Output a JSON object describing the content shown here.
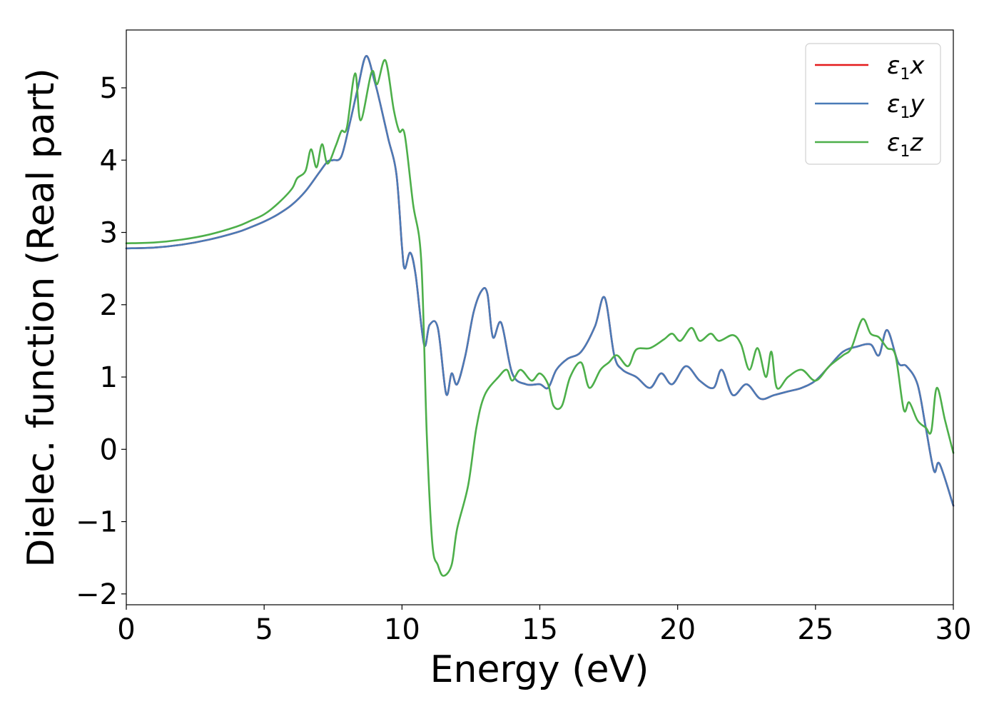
{
  "chart_data": {
    "type": "line",
    "xlabel": "Energy (eV)",
    "ylabel": "Dielec. function (Real part)",
    "xlim": [
      0,
      30
    ],
    "ylim": [
      -2.15,
      5.8
    ],
    "xticks": [
      0,
      5,
      10,
      15,
      20,
      25,
      30
    ],
    "xtick_labels": [
      "0",
      "5",
      "10",
      "15",
      "20",
      "25",
      "30"
    ],
    "yticks": [
      -2,
      -1,
      0,
      1,
      2,
      3,
      4,
      5
    ],
    "ytick_labels": [
      "−2",
      "−1",
      "0",
      "1",
      "2",
      "3",
      "4",
      "5"
    ],
    "grid": false,
    "legend_position": "top-right",
    "series": [
      {
        "name": "ε₁x",
        "name_parts": {
          "symbol": "ε",
          "sub": "1",
          "axis": "x"
        },
        "color": "#e41a1c",
        "points": [
          [
            0,
            2.78
          ],
          [
            1,
            2.79
          ],
          [
            2,
            2.83
          ],
          [
            3,
            2.9
          ],
          [
            4,
            3.0
          ],
          [
            4.5,
            3.07
          ],
          [
            5,
            3.15
          ],
          [
            5.5,
            3.25
          ],
          [
            6,
            3.38
          ],
          [
            6.5,
            3.57
          ],
          [
            7,
            3.83
          ],
          [
            7.3,
            3.98
          ],
          [
            7.5,
            4.0
          ],
          [
            7.8,
            4.05
          ],
          [
            8.1,
            4.5
          ],
          [
            8.4,
            5.0
          ],
          [
            8.7,
            5.44
          ],
          [
            9.0,
            5.1
          ],
          [
            9.2,
            4.8
          ],
          [
            9.5,
            4.3
          ],
          [
            9.8,
            3.8
          ],
          [
            10.0,
            2.8
          ],
          [
            10.1,
            2.5
          ],
          [
            10.3,
            2.72
          ],
          [
            10.5,
            2.4
          ],
          [
            10.8,
            1.45
          ],
          [
            11.0,
            1.72
          ],
          [
            11.3,
            1.68
          ],
          [
            11.6,
            0.77
          ],
          [
            11.8,
            1.05
          ],
          [
            12.0,
            0.9
          ],
          [
            12.3,
            1.3
          ],
          [
            12.6,
            1.9
          ],
          [
            12.9,
            2.2
          ],
          [
            13.1,
            2.15
          ],
          [
            13.3,
            1.55
          ],
          [
            13.6,
            1.75
          ],
          [
            14.0,
            1.05
          ],
          [
            14.5,
            0.9
          ],
          [
            15.0,
            0.9
          ],
          [
            15.3,
            0.85
          ],
          [
            15.6,
            1.1
          ],
          [
            16.0,
            1.25
          ],
          [
            16.5,
            1.35
          ],
          [
            17.0,
            1.7
          ],
          [
            17.35,
            2.1
          ],
          [
            17.7,
            1.3
          ],
          [
            18.0,
            1.1
          ],
          [
            18.5,
            1.0
          ],
          [
            19.0,
            0.85
          ],
          [
            19.4,
            1.05
          ],
          [
            19.8,
            0.9
          ],
          [
            20.3,
            1.15
          ],
          [
            20.8,
            0.95
          ],
          [
            21.3,
            0.85
          ],
          [
            21.6,
            1.1
          ],
          [
            22.0,
            0.75
          ],
          [
            22.5,
            0.9
          ],
          [
            23.0,
            0.7
          ],
          [
            23.5,
            0.75
          ],
          [
            24.0,
            0.8
          ],
          [
            24.5,
            0.85
          ],
          [
            25.0,
            0.95
          ],
          [
            25.5,
            1.15
          ],
          [
            26.0,
            1.35
          ],
          [
            26.5,
            1.42
          ],
          [
            27.0,
            1.45
          ],
          [
            27.3,
            1.3
          ],
          [
            27.6,
            1.65
          ],
          [
            28.0,
            1.2
          ],
          [
            28.3,
            1.15
          ],
          [
            28.7,
            0.9
          ],
          [
            29.0,
            0.3
          ],
          [
            29.3,
            -0.3
          ],
          [
            29.5,
            -0.2
          ],
          [
            30.0,
            -0.78
          ]
        ]
      },
      {
        "name": "ε₁y",
        "name_parts": {
          "symbol": "ε",
          "sub": "1",
          "axis": "y"
        },
        "color": "#4a7bb7",
        "points": [
          [
            0,
            2.78
          ],
          [
            1,
            2.79
          ],
          [
            2,
            2.83
          ],
          [
            3,
            2.9
          ],
          [
            4,
            3.0
          ],
          [
            4.5,
            3.07
          ],
          [
            5,
            3.15
          ],
          [
            5.5,
            3.25
          ],
          [
            6,
            3.38
          ],
          [
            6.5,
            3.57
          ],
          [
            7,
            3.83
          ],
          [
            7.3,
            3.98
          ],
          [
            7.5,
            4.0
          ],
          [
            7.8,
            4.05
          ],
          [
            8.1,
            4.5
          ],
          [
            8.4,
            5.0
          ],
          [
            8.7,
            5.44
          ],
          [
            9.0,
            5.1
          ],
          [
            9.2,
            4.8
          ],
          [
            9.5,
            4.3
          ],
          [
            9.8,
            3.8
          ],
          [
            10.0,
            2.8
          ],
          [
            10.1,
            2.5
          ],
          [
            10.3,
            2.72
          ],
          [
            10.5,
            2.4
          ],
          [
            10.8,
            1.45
          ],
          [
            11.0,
            1.72
          ],
          [
            11.3,
            1.68
          ],
          [
            11.6,
            0.77
          ],
          [
            11.8,
            1.05
          ],
          [
            12.0,
            0.9
          ],
          [
            12.3,
            1.3
          ],
          [
            12.6,
            1.9
          ],
          [
            12.9,
            2.2
          ],
          [
            13.1,
            2.15
          ],
          [
            13.3,
            1.55
          ],
          [
            13.6,
            1.75
          ],
          [
            14.0,
            1.05
          ],
          [
            14.5,
            0.9
          ],
          [
            15.0,
            0.9
          ],
          [
            15.3,
            0.85
          ],
          [
            15.6,
            1.1
          ],
          [
            16.0,
            1.25
          ],
          [
            16.5,
            1.35
          ],
          [
            17.0,
            1.7
          ],
          [
            17.35,
            2.1
          ],
          [
            17.7,
            1.3
          ],
          [
            18.0,
            1.1
          ],
          [
            18.5,
            1.0
          ],
          [
            19.0,
            0.85
          ],
          [
            19.4,
            1.05
          ],
          [
            19.8,
            0.9
          ],
          [
            20.3,
            1.15
          ],
          [
            20.8,
            0.95
          ],
          [
            21.3,
            0.85
          ],
          [
            21.6,
            1.1
          ],
          [
            22.0,
            0.75
          ],
          [
            22.5,
            0.9
          ],
          [
            23.0,
            0.7
          ],
          [
            23.5,
            0.75
          ],
          [
            24.0,
            0.8
          ],
          [
            24.5,
            0.85
          ],
          [
            25.0,
            0.95
          ],
          [
            25.5,
            1.15
          ],
          [
            26.0,
            1.35
          ],
          [
            26.5,
            1.42
          ],
          [
            27.0,
            1.45
          ],
          [
            27.3,
            1.3
          ],
          [
            27.6,
            1.65
          ],
          [
            28.0,
            1.2
          ],
          [
            28.3,
            1.15
          ],
          [
            28.7,
            0.9
          ],
          [
            29.0,
            0.3
          ],
          [
            29.3,
            -0.3
          ],
          [
            29.5,
            -0.2
          ],
          [
            30.0,
            -0.78
          ]
        ]
      },
      {
        "name": "ε₁z",
        "name_parts": {
          "symbol": "ε",
          "sub": "1",
          "axis": "z"
        },
        "color": "#4daf4a",
        "points": [
          [
            0,
            2.85
          ],
          [
            1,
            2.86
          ],
          [
            2,
            2.9
          ],
          [
            3,
            2.97
          ],
          [
            4,
            3.08
          ],
          [
            4.5,
            3.16
          ],
          [
            5,
            3.25
          ],
          [
            5.5,
            3.4
          ],
          [
            6,
            3.6
          ],
          [
            6.2,
            3.75
          ],
          [
            6.5,
            3.85
          ],
          [
            6.7,
            4.15
          ],
          [
            6.9,
            3.9
          ],
          [
            7.1,
            4.22
          ],
          [
            7.3,
            3.95
          ],
          [
            7.6,
            4.2
          ],
          [
            7.8,
            4.4
          ],
          [
            8.0,
            4.45
          ],
          [
            8.3,
            5.2
          ],
          [
            8.5,
            4.55
          ],
          [
            8.9,
            5.22
          ],
          [
            9.1,
            5.05
          ],
          [
            9.4,
            5.38
          ],
          [
            9.7,
            4.7
          ],
          [
            9.9,
            4.4
          ],
          [
            10.1,
            4.35
          ],
          [
            10.4,
            3.4
          ],
          [
            10.7,
            2.6
          ],
          [
            10.9,
            0.2
          ],
          [
            11.1,
            -1.3
          ],
          [
            11.3,
            -1.6
          ],
          [
            11.5,
            -1.75
          ],
          [
            11.8,
            -1.6
          ],
          [
            12.0,
            -1.1
          ],
          [
            12.4,
            -0.5
          ],
          [
            12.7,
            0.3
          ],
          [
            13.0,
            0.75
          ],
          [
            13.5,
            1.0
          ],
          [
            13.8,
            1.1
          ],
          [
            14.0,
            0.95
          ],
          [
            14.3,
            1.1
          ],
          [
            14.7,
            0.95
          ],
          [
            15.0,
            1.05
          ],
          [
            15.3,
            0.9
          ],
          [
            15.5,
            0.6
          ],
          [
            15.8,
            0.6
          ],
          [
            16.1,
            1.0
          ],
          [
            16.5,
            1.2
          ],
          [
            16.8,
            0.85
          ],
          [
            17.2,
            1.1
          ],
          [
            17.5,
            1.2
          ],
          [
            17.8,
            1.3
          ],
          [
            18.2,
            1.15
          ],
          [
            18.5,
            1.38
          ],
          [
            19.0,
            1.4
          ],
          [
            19.5,
            1.52
          ],
          [
            19.8,
            1.6
          ],
          [
            20.1,
            1.5
          ],
          [
            20.5,
            1.68
          ],
          [
            20.8,
            1.5
          ],
          [
            21.2,
            1.6
          ],
          [
            21.5,
            1.5
          ],
          [
            22.0,
            1.58
          ],
          [
            22.3,
            1.45
          ],
          [
            22.6,
            1.1
          ],
          [
            22.9,
            1.4
          ],
          [
            23.2,
            1.0
          ],
          [
            23.4,
            1.35
          ],
          [
            23.6,
            0.85
          ],
          [
            24.0,
            1.0
          ],
          [
            24.5,
            1.1
          ],
          [
            25.0,
            0.95
          ],
          [
            25.5,
            1.15
          ],
          [
            26.0,
            1.3
          ],
          [
            26.3,
            1.4
          ],
          [
            26.7,
            1.8
          ],
          [
            27.0,
            1.6
          ],
          [
            27.3,
            1.55
          ],
          [
            27.6,
            1.4
          ],
          [
            27.9,
            1.3
          ],
          [
            28.2,
            0.55
          ],
          [
            28.4,
            0.65
          ],
          [
            28.7,
            0.4
          ],
          [
            29.0,
            0.3
          ],
          [
            29.2,
            0.25
          ],
          [
            29.4,
            0.85
          ],
          [
            29.7,
            0.4
          ],
          [
            30.0,
            -0.05
          ]
        ]
      }
    ]
  }
}
